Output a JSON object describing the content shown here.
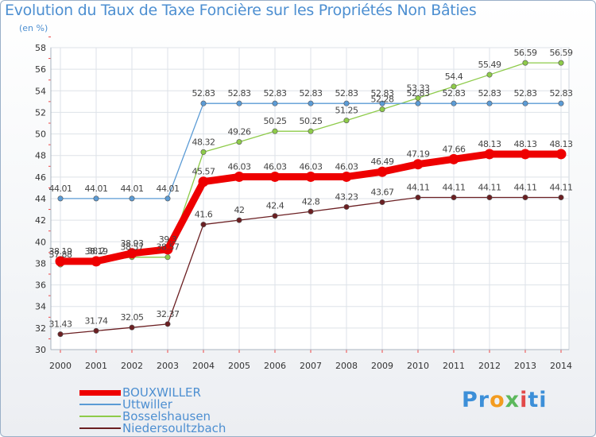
{
  "chart_data": {
    "type": "line",
    "title": "Evolution du Taux de Taxe Foncière sur les Propriétés Non Bâties",
    "unit_label": "(en %)",
    "categories": [
      "2000",
      "2001",
      "2002",
      "2003",
      "2004",
      "2005",
      "2006",
      "2007",
      "2008",
      "2009",
      "2010",
      "2011",
      "2012",
      "2013",
      "2014"
    ],
    "ylim": [
      30,
      58
    ],
    "yticks": [
      30,
      32,
      34,
      36,
      38,
      40,
      42,
      44,
      46,
      48,
      50,
      52,
      54,
      56,
      58
    ],
    "grid": true,
    "legend_position": "bottom-left",
    "series": [
      {
        "name": "Niedersoultzbach",
        "color": "#6b1f22",
        "values": [
          31.43,
          31.74,
          32.05,
          32.37,
          41.6,
          42,
          42.4,
          42.8,
          43.23,
          43.67,
          44.11,
          44.11,
          44.11,
          44.11,
          44.11
        ],
        "labels": [
          "31.43",
          "31.74",
          "32.05",
          "32.37",
          "41.6",
          "42",
          "42.4",
          "42.8",
          "43.23",
          "43.67",
          "44.11",
          "44.11",
          "44.11",
          "44.11",
          "44.11"
        ]
      },
      {
        "name": "Bosselshausen",
        "color": "#8ecb4a",
        "values": [
          37.88,
          38.2,
          38.57,
          38.57,
          48.32,
          49.26,
          50.25,
          50.25,
          51.25,
          52.28,
          53.33,
          54.4,
          55.49,
          56.59,
          56.59
        ],
        "labels": [
          "37.88",
          "38.2",
          "38.57",
          "38.57",
          "48.32",
          "49.26",
          "50.25",
          "50.25",
          "51.25",
          "52.28",
          "53.33",
          "54.4",
          "55.49",
          "56.59",
          "56.59"
        ]
      },
      {
        "name": "Uttwiller",
        "color": "#5b9bd5",
        "values": [
          44.01,
          44.01,
          44.01,
          44.01,
          52.83,
          52.83,
          52.83,
          52.83,
          52.83,
          52.83,
          52.83,
          52.83,
          52.83,
          52.83,
          52.83
        ],
        "labels": [
          "44.01",
          "44.01",
          "44.01",
          "44.01",
          "52.83",
          "52.83",
          "52.83",
          "52.83",
          "52.83",
          "52.83",
          "52.83",
          "52.83",
          "52.83",
          "52.83",
          "52.83"
        ]
      },
      {
        "name": "BOUXWILLER",
        "color": "#ee0000",
        "values": [
          38.19,
          38.19,
          38.93,
          39.3,
          45.57,
          46.03,
          46.03,
          46.03,
          46.03,
          46.49,
          47.19,
          47.66,
          48.13,
          48.13,
          48.13
        ],
        "labels": [
          "38.19",
          "38.19",
          "38.93",
          "39.3",
          "45.57",
          "46.03",
          "46.03",
          "46.03",
          "46.03",
          "46.49",
          "47.19",
          "47.66",
          "48.13",
          "48.13",
          "48.13"
        ]
      }
    ],
    "legend": [
      "BOUXWILLER",
      "Uttwiller",
      "Bosselshausen",
      "Niedersoultzbach"
    ]
  },
  "logo": {
    "p1": "Pr",
    "p2": "o",
    "p3": "x",
    "p4": "i",
    "p5": "ti"
  }
}
